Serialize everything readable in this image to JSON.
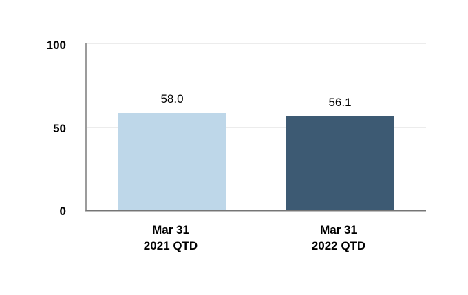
{
  "chart_data": {
    "type": "bar",
    "title": "",
    "xlabel": "",
    "ylabel": "",
    "categories": [
      "Mar 31 2021 QTD",
      "Mar 31 2022 QTD"
    ],
    "category_lines": [
      [
        "Mar 31",
        "2021 QTD"
      ],
      [
        "Mar 31",
        "2022 QTD"
      ]
    ],
    "values": [
      58.0,
      56.1
    ],
    "value_labels": [
      "58.0",
      "56.1"
    ],
    "bar_colors": [
      "#bed7e9",
      "#3d5a73"
    ],
    "ylim": [
      0,
      100
    ],
    "yticks": [
      0,
      50,
      100
    ],
    "ytick_labels": [
      "0",
      "50",
      "100"
    ],
    "grid": true,
    "legend": false
  },
  "colors": {
    "bar_2021_qtd": "#bed7e9",
    "bar_2022_qtd": "#3d5a73",
    "gridline": "#ececec",
    "y_axis_line": "#9c9c9c",
    "baseline": "#757575",
    "text": "#000000",
    "background": "#ffffff"
  }
}
